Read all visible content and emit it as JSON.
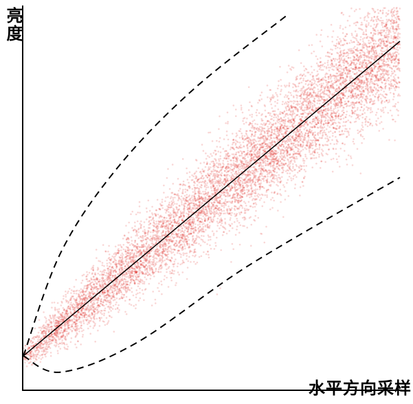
{
  "chart_data": {
    "type": "scatter",
    "title": "",
    "xlabel": "水平方向采样",
    "ylabel": "亮度",
    "grid": false,
    "legend": "none",
    "trend_line": {
      "style": "solid",
      "color": "#000000",
      "from": [
        0,
        0
      ],
      "to": [
        1,
        0.97
      ]
    },
    "envelope": {
      "style": "dashed",
      "color": "#000000",
      "upper": [
        [
          0,
          0
        ],
        [
          0.1,
          0.32
        ],
        [
          0.25,
          0.58
        ],
        [
          0.45,
          0.82
        ],
        [
          0.7,
          1.05
        ]
      ],
      "lower": [
        [
          0,
          0
        ],
        [
          0.1,
          -0.05
        ],
        [
          0.3,
          0.04
        ],
        [
          0.6,
          0.28
        ],
        [
          1.0,
          0.55
        ]
      ]
    },
    "point_color": "#e0201e",
    "xlim": [
      0,
      1
    ],
    "ylim": [
      -0.04,
      1.04
    ]
  }
}
